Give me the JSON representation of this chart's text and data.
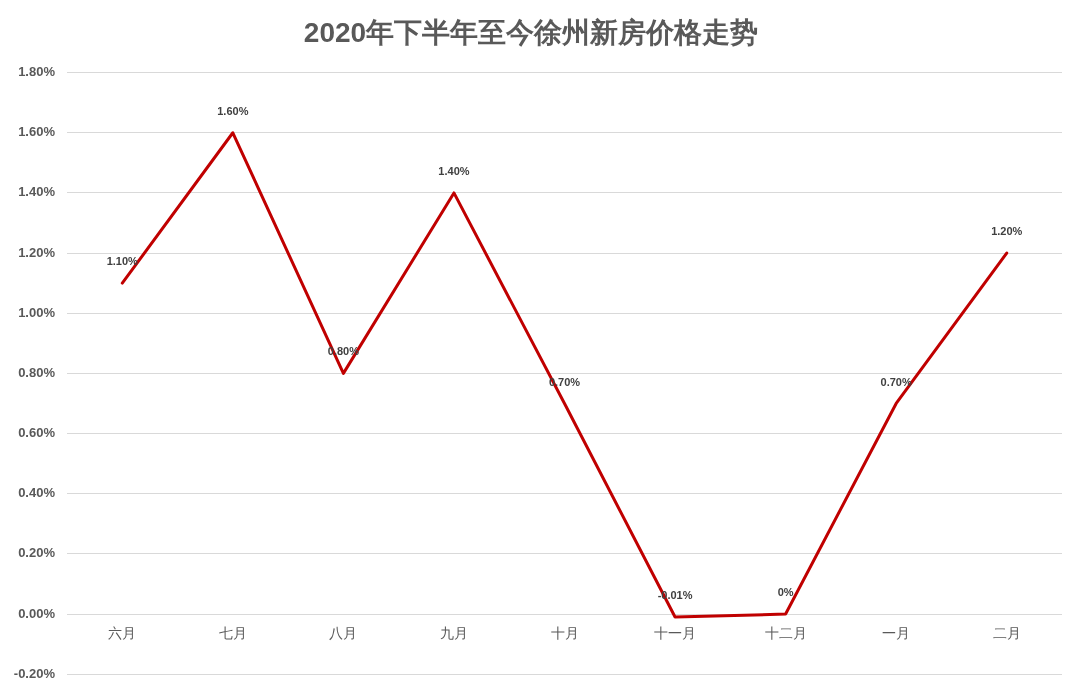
{
  "chart_data": {
    "type": "line",
    "title": "2020年下半年至今徐州新房价格走势",
    "categories": [
      "六月",
      "七月",
      "八月",
      "九月",
      "十月",
      "十一月",
      "十二月",
      "一月",
      "二月"
    ],
    "series": [
      {
        "color": "#c00000",
        "values": [
          1.1,
          1.6,
          0.8,
          1.4,
          0.7,
          -0.01,
          0,
          0.7,
          1.2
        ],
        "value_labels": [
          "1.10%",
          "1.60%",
          "0.80%",
          "1.40%",
          "0.70%",
          "-0.01%",
          "0%",
          "0.70%",
          "1.20%"
        ]
      }
    ],
    "ylim": [
      -0.2,
      1.8
    ],
    "yticks": [
      {
        "value": -0.2,
        "label": "-0.20%"
      },
      {
        "value": 0,
        "label": "0.00%"
      },
      {
        "value": 0.2,
        "label": "0.20%"
      },
      {
        "value": 0.4,
        "label": "0.40%"
      },
      {
        "value": 0.6,
        "label": "0.60%"
      },
      {
        "value": 0.8,
        "label": "0.80%"
      },
      {
        "value": 1,
        "label": "1.00%"
      },
      {
        "value": 1.2,
        "label": "1.20%"
      },
      {
        "value": 1.4,
        "label": "1.40%"
      },
      {
        "value": 1.6,
        "label": "1.60%"
      },
      {
        "value": 1.8,
        "label": "1.80%"
      }
    ],
    "grid": "y",
    "legend": false,
    "marker": "none",
    "line_style": "solid"
  }
}
